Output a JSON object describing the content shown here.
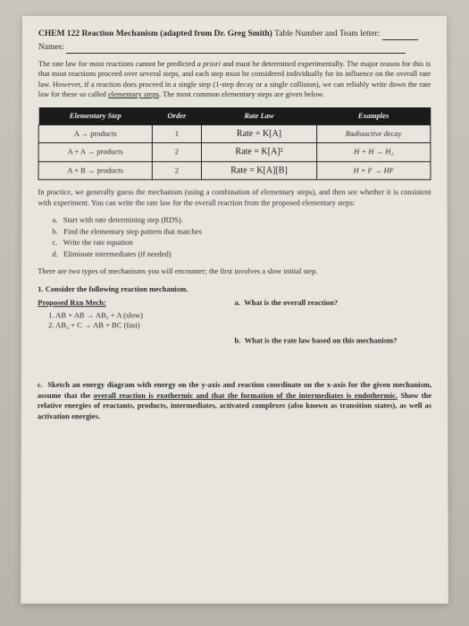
{
  "header": {
    "course": "CHEM 122 Reaction Mechanism (adapted from Dr. Greg Smith)",
    "table_label": "Table Number and Team letter:",
    "names_label": "Names:"
  },
  "intro": "The rate law for most reactions cannot be predicted ",
  "intro_italic": "a priori",
  "intro2": " and must be determined experimentally. The major reason for this is that most reactions proceed over several steps, and each step must be considered individually for its influence on the overall rate law. However, if a reaction does proceed in a single step (1-step decay or a single collision), we can reliably write down the rate law for these so called ",
  "intro_underline": "elementary steps",
  "intro3": ". The most common elementary steps are given below.",
  "table": {
    "headers": [
      "Elementary Step",
      "Order",
      "Rate Law",
      "Examples"
    ],
    "rows": [
      {
        "step": "A → products",
        "order": "1",
        "rate": "Rate = K[A]",
        "example": "Radioactive decay"
      },
      {
        "step": "A + A → products",
        "order": "2",
        "rate": "Rate = K[A]²",
        "example": "H + H → H₂"
      },
      {
        "step": "A + B → products",
        "order": "2",
        "rate": "Rate = K[A][B]",
        "example": "H + F → HF"
      }
    ]
  },
  "practice": "In practice, we generally guess the mechanism (using a combination of elementary steps), and then see whether it is consistent with experiment. You can write the rate law for the overall reaction from the proposed elementary steps:",
  "steps": {
    "a": "Start with rate determining step (RDS).",
    "b": "Find the elementary step pattern that matches",
    "c": "Write the rate equation",
    "d": "Eliminate intermediates (if needed)"
  },
  "two_types": "There are two types of mechanisms you will encounter; the first involves a slow initial step.",
  "q1_title": "1.   Consider the following reaction mechanism.",
  "proposed_title": "Proposed Rxn Mech:",
  "mech": {
    "line1": "1.   AB + AB → AB₂ + A  (slow)",
    "line2": "2.   AB₂ + C → AB + BC  (fast)"
  },
  "qa": {
    "a_label": "a.",
    "a_text": "What is the overall reaction?",
    "b_label": "b.",
    "b_text": "What is the rate law based on this mechanism?"
  },
  "part_c": {
    "label": "c.",
    "text1": "Sketch an energy diagram with energy on the y-axis and reaction coordinate on the x-axis for the given mechanism, assume that the ",
    "u1": "overall reaction is exothermic and that the formation of the intermediates is endothermic.",
    "text2": " Show the relative energies of reactants, products, intermediates, activated complexes (also known as transition states), as well as activation energies."
  }
}
